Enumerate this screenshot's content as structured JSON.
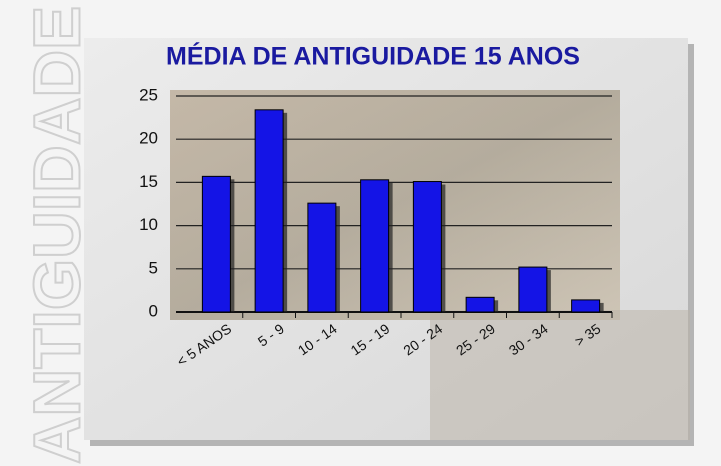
{
  "chart_data": {
    "type": "bar",
    "title": "MÉDIA DE ANTIGUIDADE 15 ANOS",
    "side_label": "ANTIGUIDADE",
    "categories": [
      "< 5 ANOS",
      "5 - 9",
      "10 - 14",
      "15 - 19",
      "20 - 24",
      "25 - 29",
      "30 - 34",
      "> 35"
    ],
    "values": [
      15.7,
      23.4,
      12.6,
      15.3,
      15.1,
      1.7,
      5.2,
      1.4
    ],
    "color": "#1414e6",
    "ylim": [
      0,
      25
    ],
    "yticks": [
      0,
      5,
      10,
      15,
      20,
      25
    ],
    "grid": true
  }
}
